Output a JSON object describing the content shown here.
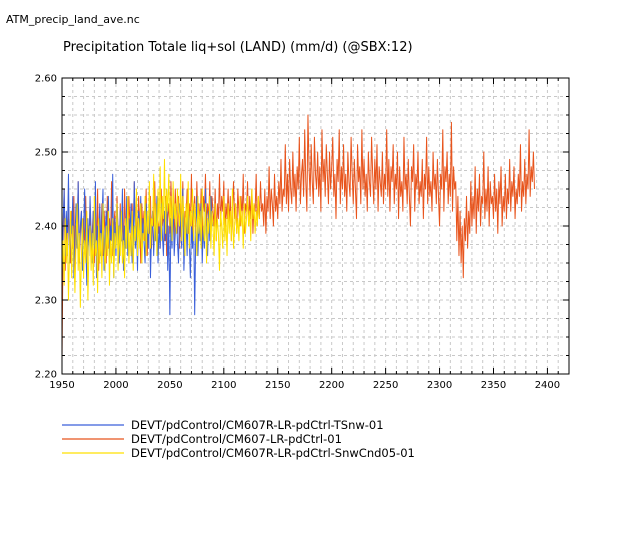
{
  "file_label": "ATM_precip_land_ave.nc",
  "chart_data": {
    "type": "line",
    "title": "Precipitation Totale liq+sol (LAND) (mm/d) (@SBX:12)",
    "xlabel": "",
    "ylabel": "",
    "xlim": [
      1950,
      2420
    ],
    "ylim": [
      2.2,
      2.6
    ],
    "xticks": [
      1950,
      2000,
      2050,
      2100,
      2150,
      2200,
      2250,
      2300,
      2350,
      2400
    ],
    "xtick_labels": [
      "1950",
      "2000",
      "2050",
      "2100",
      "2150",
      "2200",
      "2250",
      "2300",
      "2350",
      "2400"
    ],
    "yticks": [
      2.2,
      2.3,
      2.4,
      2.5,
      2.6
    ],
    "ytick_labels": [
      "2.20",
      "2.30",
      "2.40",
      "2.50",
      "2.60"
    ],
    "grid": true,
    "legend_position": "bottom-left",
    "series": [
      {
        "name": "DEVT/pdControl/CM607R-LR-pdCtrl-TSnw-01",
        "color": "#3a5fd9",
        "start_year": 1950,
        "values": [
          2.33,
          2.4,
          2.45,
          2.36,
          2.42,
          2.38,
          2.47,
          2.35,
          2.41,
          2.39,
          2.44,
          2.33,
          2.38,
          2.43,
          2.37,
          2.46,
          2.36,
          2.4,
          2.42,
          2.34,
          2.39,
          2.45,
          2.38,
          2.32,
          2.41,
          2.36,
          2.44,
          2.39,
          2.35,
          2.42,
          2.37,
          2.46,
          2.33,
          2.4,
          2.38,
          2.43,
          2.36,
          2.41,
          2.45,
          2.34,
          2.39,
          2.42,
          2.37,
          2.44,
          2.35,
          2.4,
          2.38,
          2.47,
          2.33,
          2.41,
          2.36,
          2.43,
          2.39,
          2.35,
          2.42,
          2.38,
          2.45,
          2.34,
          2.4,
          2.37,
          2.44,
          2.36,
          2.41,
          2.39,
          2.43,
          2.35,
          2.38,
          2.46,
          2.37,
          2.4,
          2.34,
          2.42,
          2.39,
          2.44,
          2.36,
          2.41,
          2.38,
          2.35,
          2.43,
          2.4,
          2.37,
          2.45,
          2.33,
          2.39,
          2.42,
          2.36,
          2.41,
          2.38,
          2.44,
          2.35,
          2.4,
          2.37,
          2.43,
          2.39,
          2.36,
          2.42,
          2.38,
          2.45,
          2.34,
          2.4,
          2.28,
          2.41,
          2.37,
          2.44,
          2.36,
          2.39,
          2.42,
          2.38,
          2.35,
          2.43,
          2.4,
          2.37,
          2.45,
          2.34,
          2.39,
          2.41,
          2.36,
          2.43,
          2.38,
          2.33,
          2.4,
          2.37,
          2.42,
          2.28,
          2.39,
          2.44,
          2.36,
          2.41,
          2.38,
          2.43,
          2.35,
          2.4,
          2.37,
          2.45,
          2.39,
          2.36,
          2.42,
          2.38,
          2.44,
          2.4
        ]
      },
      {
        "name": "DEVT/pdControl/CM607-LR-pdCtrl-01",
        "color": "#e8541c",
        "start_year": 1950,
        "values": [
          2.22,
          2.38,
          2.45,
          2.34,
          2.41,
          2.36,
          2.43,
          2.39,
          2.35,
          2.42,
          2.37,
          2.44,
          2.33,
          2.4,
          2.38,
          2.46,
          2.35,
          2.39,
          2.42,
          2.36,
          2.41,
          2.37,
          2.44,
          2.34,
          2.4,
          2.38,
          2.43,
          2.36,
          2.39,
          2.42,
          2.35,
          2.41,
          2.37,
          2.45,
          2.34,
          2.4,
          2.38,
          2.43,
          2.36,
          2.42,
          2.39,
          2.35,
          2.44,
          2.37,
          2.41,
          2.38,
          2.46,
          2.36,
          2.4,
          2.42,
          2.37,
          2.44,
          2.39,
          2.35,
          2.43,
          2.38,
          2.41,
          2.36,
          2.45,
          2.39,
          2.42,
          2.37,
          2.44,
          2.4,
          2.36,
          2.43,
          2.38,
          2.46,
          2.39,
          2.41,
          2.37,
          2.44,
          2.4,
          2.35,
          2.43,
          2.39,
          2.42,
          2.38,
          2.45,
          2.36,
          2.41,
          2.39,
          2.44,
          2.37,
          2.42,
          2.4,
          2.46,
          2.38,
          2.43,
          2.39,
          2.41,
          2.37,
          2.45,
          2.4,
          2.42,
          2.38,
          2.44,
          2.36,
          2.41,
          2.43,
          2.39,
          2.46,
          2.4,
          2.42,
          2.38,
          2.45,
          2.41,
          2.39,
          2.44,
          2.37,
          2.43,
          2.4,
          2.46,
          2.38,
          2.42,
          2.41,
          2.45,
          2.39,
          2.43,
          2.4,
          2.47,
          2.38,
          2.42,
          2.44,
          2.39,
          2.46,
          2.41,
          2.43,
          2.4,
          2.45,
          2.38,
          2.44,
          2.42,
          2.47,
          2.4,
          2.43,
          2.41,
          2.46,
          2.39,
          2.44,
          2.42,
          2.4,
          2.45,
          2.38,
          2.43,
          2.41,
          2.47,
          2.4,
          2.44,
          2.42,
          2.46,
          2.39,
          2.43,
          2.41,
          2.45,
          2.4,
          2.44,
          2.38,
          2.42,
          2.46,
          2.41,
          2.43,
          2.39,
          2.45,
          2.42,
          2.4,
          2.44,
          2.41,
          2.47,
          2.39,
          2.43,
          2.42,
          2.46,
          2.4,
          2.44,
          2.41,
          2.45,
          2.39,
          2.43,
          2.42,
          2.47,
          2.4,
          2.44,
          2.41,
          2.46,
          2.42,
          2.43,
          2.4,
          2.45,
          2.39,
          2.44,
          2.42,
          2.48,
          2.41,
          2.45,
          2.43,
          2.4,
          2.47,
          2.42,
          2.44,
          2.41,
          2.46,
          2.43,
          2.49,
          2.42,
          2.45,
          2.44,
          2.51,
          2.43,
          2.47,
          2.42,
          2.49,
          2.45,
          2.43,
          2.5,
          2.44,
          2.47,
          2.42,
          2.48,
          2.45,
          2.52,
          2.43,
          2.47,
          2.49,
          2.44,
          2.53,
          2.46,
          2.42,
          2.55,
          2.48,
          2.44,
          2.51,
          2.46,
          2.43,
          2.52,
          2.47,
          2.45,
          2.5,
          2.44,
          2.48,
          2.42,
          2.53,
          2.46,
          2.49,
          2.44,
          2.51,
          2.47,
          2.43,
          2.5,
          2.45,
          2.48,
          2.52,
          2.44,
          2.47,
          2.41,
          2.49,
          2.46,
          2.53,
          2.43,
          2.48,
          2.45,
          2.51,
          2.44,
          2.47,
          2.42,
          2.5,
          2.46,
          2.44,
          2.52,
          2.47,
          2.43,
          2.49,
          2.45,
          2.41,
          2.51,
          2.46,
          2.48,
          2.43,
          2.53,
          2.45,
          2.49,
          2.44,
          2.47,
          2.42,
          2.5,
          2.46,
          2.44,
          2.52,
          2.47,
          2.43,
          2.49,
          2.45,
          2.51,
          2.42,
          2.48,
          2.46,
          2.44,
          2.5,
          2.43,
          2.47,
          2.45,
          2.53,
          2.44,
          2.49,
          2.42,
          2.48,
          2.46,
          2.51,
          2.43,
          2.47,
          2.45,
          2.5,
          2.41,
          2.48,
          2.44,
          2.46,
          2.42,
          2.52,
          2.45,
          2.47,
          2.43,
          2.49,
          2.44,
          2.4,
          2.48,
          2.46,
          2.51,
          2.42,
          2.47,
          2.45,
          2.5,
          2.43,
          2.46,
          2.44,
          2.49,
          2.41,
          2.47,
          2.45,
          2.52,
          2.43,
          2.48,
          2.44,
          2.46,
          2.42,
          2.5,
          2.45,
          2.47,
          2.43,
          2.49,
          2.44,
          2.4,
          2.47,
          2.45,
          2.53,
          2.42,
          2.48,
          2.46,
          2.5,
          2.43,
          2.47,
          2.44,
          2.54,
          2.42,
          2.48,
          2.45,
          2.46,
          2.38,
          2.44,
          2.36,
          2.42,
          2.35,
          2.4,
          2.33,
          2.41,
          2.38,
          2.44,
          2.37,
          2.42,
          2.39,
          2.46,
          2.4,
          2.44,
          2.41,
          2.48,
          2.39,
          2.45,
          2.42,
          2.47,
          2.4,
          2.44,
          2.43,
          2.5,
          2.41,
          2.45,
          2.42,
          2.48,
          2.4,
          2.46,
          2.43,
          2.44,
          2.41,
          2.47,
          2.42,
          2.45,
          2.39,
          2.46,
          2.43,
          2.48,
          2.4,
          2.44,
          2.42,
          2.47,
          2.41,
          2.45,
          2.43,
          2.49,
          2.42,
          2.46,
          2.44,
          2.48,
          2.41,
          2.45,
          2.43,
          2.47,
          2.44,
          2.51,
          2.42,
          2.46,
          2.44,
          2.49,
          2.43,
          2.47,
          2.45,
          2.53,
          2.44,
          2.48,
          2.46,
          2.5,
          2.45
        ]
      },
      {
        "name": "DEVT/pdControl/CM607R-LR-pdCtrl-SnwCnd05-01",
        "color": "#ffe000",
        "start_year": 1950,
        "values": [
          2.34,
          2.38,
          2.32,
          2.41,
          2.35,
          2.39,
          2.3,
          2.37,
          2.42,
          2.33,
          2.4,
          2.36,
          2.31,
          2.38,
          2.43,
          2.34,
          2.39,
          2.29,
          2.36,
          2.41,
          2.33,
          2.38,
          2.35,
          2.42,
          2.3,
          2.37,
          2.4,
          2.34,
          2.39,
          2.32,
          2.44,
          2.36,
          2.38,
          2.31,
          2.41,
          2.35,
          2.39,
          2.33,
          2.43,
          2.37,
          2.34,
          2.4,
          2.36,
          2.42,
          2.32,
          2.38,
          2.35,
          2.41,
          2.33,
          2.39,
          2.37,
          2.43,
          2.34,
          2.4,
          2.36,
          2.42,
          2.35,
          2.38,
          2.33,
          2.41,
          2.37,
          2.44,
          2.35,
          2.39,
          2.36,
          2.42,
          2.34,
          2.4,
          2.38,
          2.45,
          2.36,
          2.41,
          2.37,
          2.43,
          2.35,
          2.39,
          2.38,
          2.44,
          2.36,
          2.42,
          2.39,
          2.46,
          2.37,
          2.41,
          2.4,
          2.47,
          2.38,
          2.43,
          2.36,
          2.45,
          2.4,
          2.48,
          2.38,
          2.44,
          2.41,
          2.49,
          2.39,
          2.45,
          2.42,
          2.47,
          2.4,
          2.44,
          2.38,
          2.46,
          2.41,
          2.43,
          2.39,
          2.45,
          2.42,
          2.4,
          2.47,
          2.38,
          2.44,
          2.41,
          2.36,
          2.43,
          2.39,
          2.46,
          2.37,
          2.42,
          2.4,
          2.45,
          2.38,
          2.43,
          2.41,
          2.36,
          2.44,
          2.39,
          2.42,
          2.37,
          2.45,
          2.4,
          2.38,
          2.43,
          2.35,
          2.41,
          2.39,
          2.44,
          2.37,
          2.42,
          2.4,
          2.36,
          2.43,
          2.38,
          2.41,
          2.39,
          2.34,
          2.42,
          2.4,
          2.37,
          2.44,
          2.38,
          2.41,
          2.36,
          2.43,
          2.39,
          2.42,
          2.38,
          2.45,
          2.37,
          2.4,
          2.43,
          2.39,
          2.41,
          2.38,
          2.44,
          2.4,
          2.42,
          2.37,
          2.43,
          2.39,
          2.41,
          2.44,
          2.4,
          2.42,
          2.38,
          2.45,
          2.41,
          2.43,
          2.39,
          2.42,
          2.4,
          2.44,
          2.41
        ]
      }
    ]
  }
}
